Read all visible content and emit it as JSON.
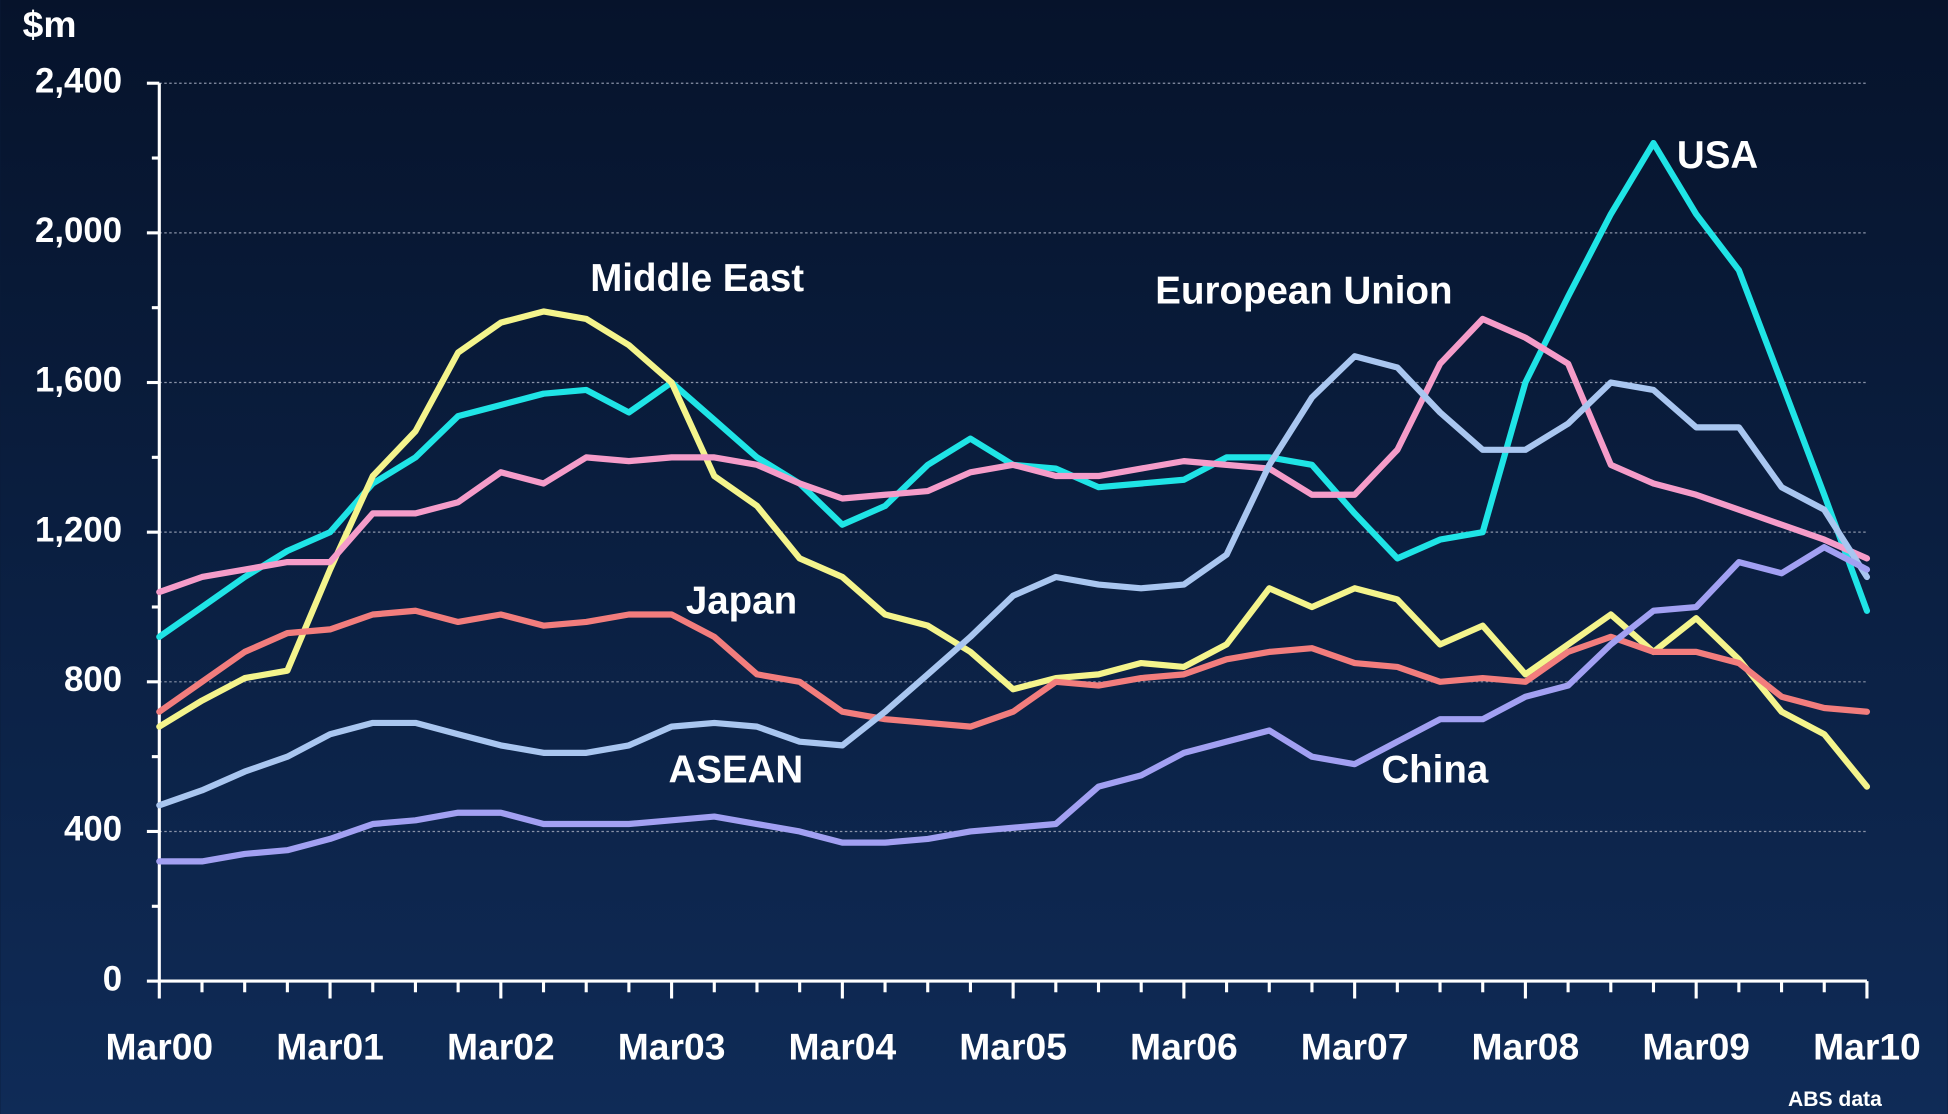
{
  "chart_data": {
    "type": "line",
    "y_label": "$m",
    "source": "ABS  data",
    "categories": [
      "Mar00",
      null,
      null,
      null,
      "Mar01",
      null,
      null,
      null,
      "Mar02",
      null,
      null,
      null,
      "Mar03",
      null,
      null,
      null,
      "Mar04",
      null,
      null,
      null,
      "Mar05",
      null,
      null,
      null,
      "Mar06",
      null,
      null,
      null,
      "Mar07",
      null,
      null,
      null,
      "Mar08",
      null,
      null,
      null,
      "Mar09",
      null,
      null,
      null,
      "Mar10"
    ],
    "ylim": [
      0,
      2400
    ],
    "yticks": [
      0,
      400,
      800,
      {
        "value": 1200,
        "label": "1,200"
      },
      {
        "value": 1600,
        "label": "1,600"
      },
      {
        "value": 2000,
        "label": "2,000"
      },
      {
        "value": 2400,
        "label": "2,400"
      }
    ],
    "grid": true,
    "series": [
      {
        "name": "USA",
        "color": "#1fe4e6",
        "values": [
          920,
          1000,
          1080,
          1150,
          1200,
          1330,
          1400,
          1510,
          1540,
          1570,
          1580,
          1520,
          1600,
          1500,
          1400,
          1330,
          1220,
          1270,
          1380,
          1450,
          1380,
          1370,
          1320,
          1330,
          1340,
          1400,
          1400,
          1380,
          1250,
          1130,
          1180,
          1200,
          1600,
          1830,
          2050,
          2240,
          2050,
          1900,
          1600,
          1300,
          990
        ]
      },
      {
        "name": "Middle East",
        "color": "#f4f48c",
        "values": [
          680,
          750,
          810,
          830,
          1100,
          1350,
          1470,
          1680,
          1760,
          1790,
          1770,
          1700,
          1600,
          1350,
          1270,
          1130,
          1080,
          980,
          950,
          880,
          780,
          810,
          820,
          850,
          840,
          900,
          1050,
          1000,
          1050,
          1020,
          900,
          950,
          820,
          900,
          980,
          880,
          970,
          860,
          720,
          660,
          520
        ]
      },
      {
        "name": "European Union",
        "color": "#f59cc9",
        "values": [
          1040,
          1080,
          1100,
          1120,
          1120,
          1250,
          1250,
          1280,
          1360,
          1330,
          1400,
          1390,
          1400,
          1400,
          1380,
          1330,
          1290,
          1300,
          1310,
          1360,
          1380,
          1350,
          1350,
          1370,
          1390,
          1380,
          1370,
          1300,
          1300,
          1420,
          1650,
          1770,
          1720,
          1650,
          1380,
          1330,
          1300,
          1260,
          1220,
          1180,
          1130
        ]
      },
      {
        "name": "Japan",
        "color": "#f27d7d",
        "values": [
          720,
          800,
          880,
          930,
          940,
          980,
          990,
          960,
          980,
          950,
          960,
          980,
          980,
          920,
          820,
          800,
          720,
          700,
          690,
          680,
          720,
          800,
          790,
          810,
          820,
          860,
          880,
          890,
          850,
          840,
          800,
          810,
          800,
          880,
          920,
          880,
          880,
          850,
          760,
          730,
          720
        ]
      },
      {
        "name": "ASEAN",
        "color": "#a9c6f0",
        "values": [
          470,
          510,
          560,
          600,
          660,
          690,
          690,
          660,
          630,
          610,
          610,
          630,
          680,
          690,
          680,
          640,
          630,
          720,
          820,
          920,
          1030,
          1080,
          1060,
          1050,
          1060,
          1140,
          1380,
          1560,
          1670,
          1640,
          1520,
          1420,
          1420,
          1490,
          1600,
          1580,
          1480,
          1480,
          1320,
          1260,
          1080
        ]
      },
      {
        "name": "China",
        "color": "#a2a0f2",
        "values": [
          320,
          320,
          340,
          350,
          380,
          420,
          430,
          450,
          450,
          420,
          420,
          420,
          430,
          440,
          420,
          400,
          370,
          370,
          380,
          400,
          410,
          420,
          520,
          550,
          610,
          640,
          670,
          600,
          580,
          640,
          700,
          700,
          760,
          790,
          900,
          990,
          1000,
          1120,
          1090,
          1160,
          1100
        ]
      }
    ]
  }
}
